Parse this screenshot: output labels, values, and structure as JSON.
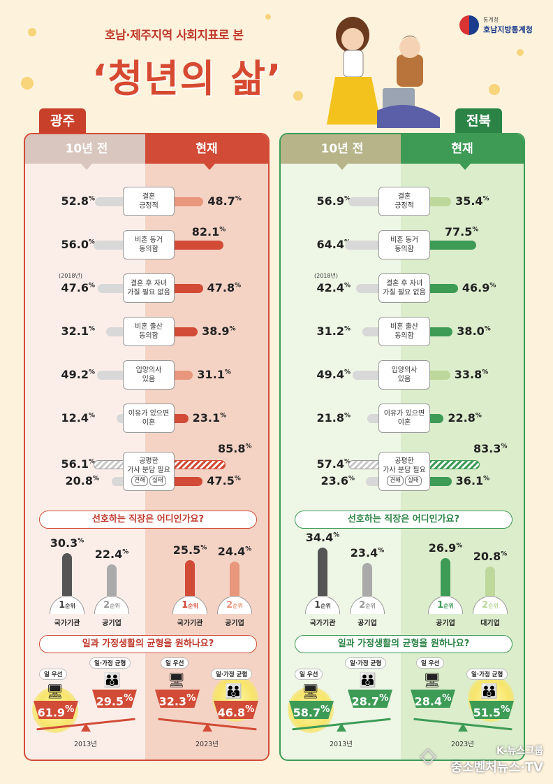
{
  "header": {
    "subtitle": "호남·제주지역 사회지표로 본",
    "title": "‘청년의 삶’"
  },
  "agency": {
    "small": "통계청",
    "name": "호남지방통계청"
  },
  "regions": [
    {
      "name": "광주",
      "col_prev": "10년 전",
      "col_now": "현재",
      "indicators": [
        {
          "label": "결혼\n긍정적",
          "prev": "52.8",
          "now": "48.7",
          "prev_v": 52.8,
          "now_v": 48.7,
          "tone": "light"
        },
        {
          "label": "비혼 동거\n동의함",
          "prev": "56.0",
          "now": "82.1",
          "prev_v": 56.0,
          "now_v": 82.1,
          "tone": "dark"
        },
        {
          "label": "결혼 후 자녀\n가질 필요 없음",
          "note": "(2018년)",
          "prev": "47.6",
          "now": "47.8",
          "prev_v": 47.6,
          "now_v": 47.8,
          "tone": "dark"
        },
        {
          "label": "비혼 출산\n동의함",
          "prev": "32.1",
          "now": "38.9",
          "prev_v": 32.1,
          "now_v": 38.9,
          "tone": "dark"
        },
        {
          "label": "입양의사\n있음",
          "prev": "49.2",
          "now": "31.1",
          "prev_v": 49.2,
          "now_v": 31.1,
          "tone": "light"
        },
        {
          "label": "이유가 있으면\n이혼",
          "prev": "12.4",
          "now": "23.1",
          "prev_v": 12.4,
          "now_v": 23.1,
          "tone": "dark"
        }
      ],
      "housework": {
        "label": "공평한\n가사 분담 필요",
        "tag1": "견해",
        "tag2": "실태",
        "prev_view": "56.1",
        "now_view": "85.8",
        "prev_fact": "20.8",
        "now_fact": "47.5",
        "prev_view_v": 56.1,
        "now_view_v": 85.8,
        "prev_fact_v": 20.8,
        "now_fact_v": 47.5
      },
      "q1": "선호하는 직장은 어디인가요?",
      "jobs_prev": [
        {
          "pct": "30.3",
          "v": 30.3,
          "rank": "1",
          "cat": "국가기관"
        },
        {
          "pct": "22.4",
          "v": 22.4,
          "rank": "2",
          "cat": "공기업"
        }
      ],
      "jobs_now": [
        {
          "pct": "25.5",
          "v": 25.5,
          "rank": "1",
          "cat": "국가기관"
        },
        {
          "pct": "24.4",
          "v": 24.4,
          "rank": "2",
          "cat": "공기업"
        }
      ],
      "rank_suffix": "순위",
      "q2": "일과 가정생활의 균형을 원하나요?",
      "balance_prev": {
        "work_label": "일 우선",
        "wl_label": "일·가정 균형",
        "work": "61.9",
        "wl": "29.5",
        "year": "2013년",
        "heavy": "work"
      },
      "balance_now": {
        "work_label": "일 우선",
        "wl_label": "일·가정 균형",
        "work": "32.3",
        "wl": "46.8",
        "year": "2023년",
        "heavy": "wl"
      }
    },
    {
      "name": "전북",
      "col_prev": "10년 전",
      "col_now": "현재",
      "indicators": [
        {
          "label": "결혼\n긍정적",
          "prev": "56.9",
          "now": "35.4",
          "prev_v": 56.9,
          "now_v": 35.4,
          "tone": "light"
        },
        {
          "label": "비혼 동거\n동의함",
          "prev": "64.4",
          "now": "77.5",
          "prev_v": 64.4,
          "now_v": 77.5,
          "tone": "dark"
        },
        {
          "label": "결혼 후 자녀\n가질 필요 없음",
          "note": "(2018년)",
          "prev": "42.4",
          "now": "46.9",
          "prev_v": 42.4,
          "now_v": 46.9,
          "tone": "dark"
        },
        {
          "label": "비혼 출산\n동의함",
          "prev": "31.2",
          "now": "38.0",
          "prev_v": 31.2,
          "now_v": 38.0,
          "tone": "dark"
        },
        {
          "label": "입양의사\n있음",
          "prev": "49.4",
          "now": "33.8",
          "prev_v": 49.4,
          "now_v": 33.8,
          "tone": "light"
        },
        {
          "label": "이유가 있으면\n이혼",
          "prev": "21.8",
          "now": "22.8",
          "prev_v": 21.8,
          "now_v": 22.8,
          "tone": "dark"
        }
      ],
      "housework": {
        "label": "공평한\n가사 분담 필요",
        "tag1": "견해",
        "tag2": "실태",
        "prev_view": "57.4",
        "now_view": "83.3",
        "prev_fact": "23.6",
        "now_fact": "36.1",
        "prev_view_v": 57.4,
        "now_view_v": 83.3,
        "prev_fact_v": 23.6,
        "now_fact_v": 36.1
      },
      "q1": "선호하는 직장은 어디인가요?",
      "jobs_prev": [
        {
          "pct": "34.4",
          "v": 34.4,
          "rank": "1",
          "cat": "국가기관"
        },
        {
          "pct": "23.4",
          "v": 23.4,
          "rank": "2",
          "cat": "공기업"
        }
      ],
      "jobs_now": [
        {
          "pct": "26.9",
          "v": 26.9,
          "rank": "1",
          "cat": "공기업"
        },
        {
          "pct": "20.8",
          "v": 20.8,
          "rank": "2",
          "cat": "대기업"
        }
      ],
      "rank_suffix": "순위",
      "q2": "일과 가정생활의 균형을 원하나요?",
      "balance_prev": {
        "work_label": "일 우선",
        "wl_label": "일·가정 균형",
        "work": "58.7",
        "wl": "28.7",
        "year": "2013년",
        "heavy": "work"
      },
      "balance_now": {
        "work_label": "일 우선",
        "wl_label": "일·가정 균형",
        "work": "28.4",
        "wl": "51.5",
        "year": "2023년",
        "heavy": "wl"
      }
    }
  ],
  "pct_sign": "%",
  "watermark": {
    "line1": "K-뉴스그룹",
    "line2": "중소벤처뉴스·TV"
  },
  "colors": {
    "gwangju": "#d14b36",
    "gwangju_light": "#e8967c",
    "jeonbuk": "#3d9b56",
    "jeonbuk_light": "#bdd89a"
  }
}
